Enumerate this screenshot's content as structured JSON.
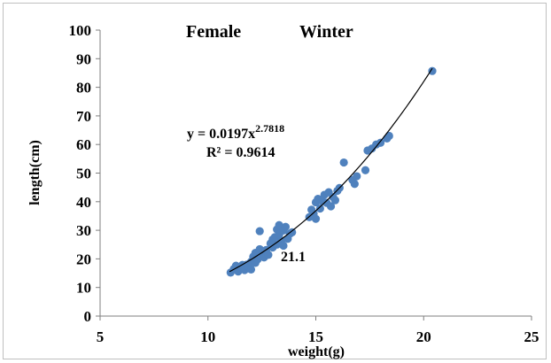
{
  "chart_data": {
    "type": "scatter",
    "title_left": "Female",
    "title_right": "Winter",
    "xlabel": "weight(g)",
    "ylabel": "length(cm)",
    "xlim": [
      5,
      25
    ],
    "ylim": [
      0,
      100
    ],
    "xticks": [
      "5",
      "10",
      "15",
      "20",
      "25"
    ],
    "yticks": [
      "0",
      "10",
      "20",
      "30",
      "40",
      "50",
      "60",
      "70",
      "80",
      "90",
      "100"
    ],
    "grid": false,
    "legend": "none",
    "point_color": "#4f81bd",
    "trendline": {
      "type": "power",
      "coefficient": 0.0197,
      "exponent": 2.7818,
      "x_range": [
        11,
        20.4
      ],
      "equation_main": "y = 0.0197x",
      "equation_exponent": "2.7818",
      "r_squared": "R² = 0.9614",
      "color": "#000000"
    },
    "annotation": "21.1",
    "points": [
      {
        "x": 11.05,
        "y": 15.2
      },
      {
        "x": 11.2,
        "y": 16.5
      },
      {
        "x": 11.3,
        "y": 17.6
      },
      {
        "x": 11.4,
        "y": 15.6
      },
      {
        "x": 11.5,
        "y": 16.9
      },
      {
        "x": 11.6,
        "y": 17.9
      },
      {
        "x": 11.7,
        "y": 16.1
      },
      {
        "x": 11.8,
        "y": 18.0
      },
      {
        "x": 11.9,
        "y": 17.2
      },
      {
        "x": 12.0,
        "y": 16.3
      },
      {
        "x": 12.0,
        "y": 19.0
      },
      {
        "x": 12.1,
        "y": 20.8
      },
      {
        "x": 12.2,
        "y": 22.1
      },
      {
        "x": 12.2,
        "y": 18.6
      },
      {
        "x": 12.3,
        "y": 19.8
      },
      {
        "x": 12.4,
        "y": 29.7
      },
      {
        "x": 12.4,
        "y": 23.4
      },
      {
        "x": 12.5,
        "y": 21.9
      },
      {
        "x": 12.6,
        "y": 20.5
      },
      {
        "x": 12.7,
        "y": 23.1
      },
      {
        "x": 12.8,
        "y": 21.4
      },
      {
        "x": 12.9,
        "y": 25.4
      },
      {
        "x": 13.0,
        "y": 24.0
      },
      {
        "x": 13.0,
        "y": 26.8
      },
      {
        "x": 13.1,
        "y": 27.6
      },
      {
        "x": 13.2,
        "y": 30.3
      },
      {
        "x": 13.2,
        "y": 25.0
      },
      {
        "x": 13.3,
        "y": 31.8
      },
      {
        "x": 13.3,
        "y": 28.4
      },
      {
        "x": 13.4,
        "y": 26.3
      },
      {
        "x": 13.5,
        "y": 29.9
      },
      {
        "x": 13.5,
        "y": 24.6
      },
      {
        "x": 13.6,
        "y": 31.2
      },
      {
        "x": 13.7,
        "y": 27.0
      },
      {
        "x": 13.8,
        "y": 28.8
      },
      {
        "x": 13.9,
        "y": 29.3
      },
      {
        "x": 14.7,
        "y": 34.6
      },
      {
        "x": 14.8,
        "y": 37.2
      },
      {
        "x": 14.9,
        "y": 35.8
      },
      {
        "x": 15.0,
        "y": 39.8
      },
      {
        "x": 15.0,
        "y": 34.0
      },
      {
        "x": 15.1,
        "y": 41.0
      },
      {
        "x": 15.2,
        "y": 37.6
      },
      {
        "x": 15.3,
        "y": 40.2
      },
      {
        "x": 15.4,
        "y": 42.4
      },
      {
        "x": 15.5,
        "y": 39.6
      },
      {
        "x": 15.6,
        "y": 43.3
      },
      {
        "x": 15.7,
        "y": 38.4
      },
      {
        "x": 15.8,
        "y": 41.6
      },
      {
        "x": 15.9,
        "y": 40.5
      },
      {
        "x": 16.0,
        "y": 43.8
      },
      {
        "x": 16.1,
        "y": 44.8
      },
      {
        "x": 16.3,
        "y": 53.7
      },
      {
        "x": 16.7,
        "y": 47.6
      },
      {
        "x": 16.8,
        "y": 46.2
      },
      {
        "x": 16.9,
        "y": 48.9
      },
      {
        "x": 17.3,
        "y": 51.0
      },
      {
        "x": 17.4,
        "y": 57.9
      },
      {
        "x": 17.6,
        "y": 58.6
      },
      {
        "x": 17.8,
        "y": 60.0
      },
      {
        "x": 18.0,
        "y": 60.6
      },
      {
        "x": 18.3,
        "y": 62.1
      },
      {
        "x": 18.4,
        "y": 63.0
      },
      {
        "x": 20.4,
        "y": 85.7
      }
    ]
  }
}
